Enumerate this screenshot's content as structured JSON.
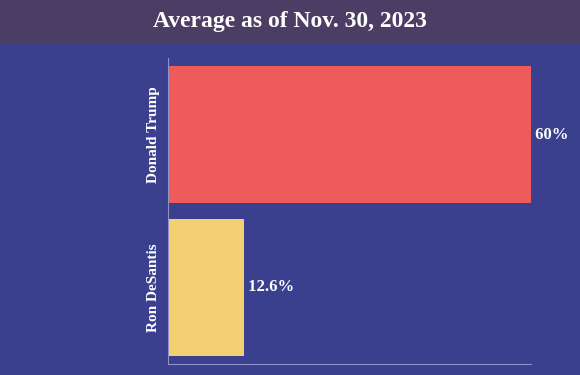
{
  "chart_data": {
    "type": "bar",
    "title": "Average as of Nov. 30, 2023",
    "orientation": "horizontal",
    "categories": [
      "Donald Trump",
      "Ron DeSantis"
    ],
    "values": [
      60,
      12.6
    ],
    "value_labels": [
      "60%",
      "12.6%"
    ],
    "colors": [
      "#ef5b5b",
      "#f3cf72"
    ],
    "xlim": [
      0,
      60
    ],
    "xticks": [],
    "data_labels": true,
    "tick_labels": "y",
    "grid": false
  }
}
